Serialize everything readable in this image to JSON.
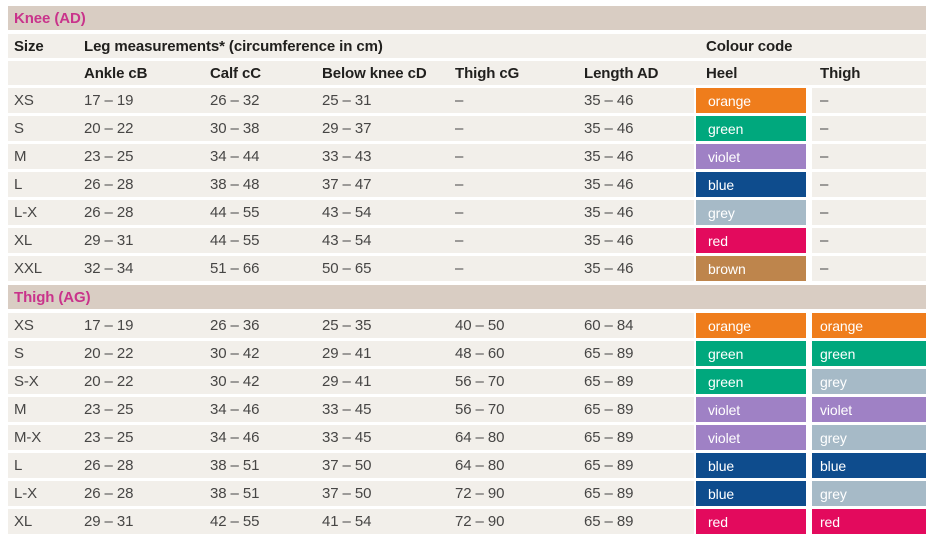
{
  "colors": {
    "band_bg": "#D9CDC3",
    "row_bg": "#F2EFEA",
    "section_title": "#C9338B",
    "header_text": "#21201E",
    "data_text": "#474645",
    "swatch_text": "#FFFFFF",
    "swatches": {
      "orange": "#EF7D1C",
      "green": "#00A87D",
      "violet": "#9F81C5",
      "blue": "#0E4C8D",
      "grey": "#A6BAC7",
      "red": "#E30A5D",
      "brown": "#BE854C"
    }
  },
  "table": {
    "size_label": "Size",
    "leg_measurements_label": "Leg measurements* (circumference in cm)",
    "colour_code_label": "Colour code",
    "measure_columns": [
      "Ankle cB",
      "Calf cC",
      "Below knee cD",
      "Thigh cG",
      "Length AD"
    ],
    "colour_columns": [
      "Heel",
      "Thigh"
    ],
    "sections": [
      {
        "id": "knee",
        "title": "Knee (AD)",
        "rows": [
          {
            "size": "XS",
            "values": [
              "17 – 19",
              "26 – 32",
              "25 – 31",
              "–",
              "35 – 46"
            ],
            "heel": "orange",
            "thigh": "–"
          },
          {
            "size": "S",
            "values": [
              "20 – 22",
              "30 – 38",
              "29 – 37",
              "–",
              "35 – 46"
            ],
            "heel": "green",
            "thigh": "–"
          },
          {
            "size": "M",
            "values": [
              "23 – 25",
              "34 – 44",
              "33 – 43",
              "–",
              "35 – 46"
            ],
            "heel": "violet",
            "thigh": "–"
          },
          {
            "size": "L",
            "values": [
              "26 – 28",
              "38 – 48",
              "37 – 47",
              "–",
              "35 – 46"
            ],
            "heel": "blue",
            "thigh": "–"
          },
          {
            "size": "L-X",
            "values": [
              "26 – 28",
              "44 – 55",
              "43 – 54",
              "–",
              "35 – 46"
            ],
            "heel": "grey",
            "thigh": "–"
          },
          {
            "size": "XL",
            "values": [
              "29 – 31",
              "44 – 55",
              "43 – 54",
              "–",
              "35 – 46"
            ],
            "heel": "red",
            "thigh": "–"
          },
          {
            "size": "XXL",
            "values": [
              "32 – 34",
              "51 – 66",
              "50 – 65",
              "–",
              "35 – 46"
            ],
            "heel": "brown",
            "thigh": "–"
          }
        ]
      },
      {
        "id": "thigh",
        "title": "Thigh (AG)",
        "rows": [
          {
            "size": "XS",
            "values": [
              "17 – 19",
              "26 – 36",
              "25 – 35",
              "40 – 50",
              "60 – 84"
            ],
            "heel": "orange",
            "thigh": "orange"
          },
          {
            "size": "S",
            "values": [
              "20 – 22",
              "30 – 42",
              "29 – 41",
              "48 – 60",
              "65 – 89"
            ],
            "heel": "green",
            "thigh": "green"
          },
          {
            "size": "S-X",
            "values": [
              "20 – 22",
              "30 – 42",
              "29 – 41",
              "56 – 70",
              "65 – 89"
            ],
            "heel": "green",
            "thigh": "grey"
          },
          {
            "size": "M",
            "values": [
              "23 – 25",
              "34 – 46",
              "33 – 45",
              "56 – 70",
              "65 – 89"
            ],
            "heel": "violet",
            "thigh": "violet"
          },
          {
            "size": "M-X",
            "values": [
              "23 – 25",
              "34 – 46",
              "33 – 45",
              "64 – 80",
              "65 – 89"
            ],
            "heel": "violet",
            "thigh": "grey"
          },
          {
            "size": "L",
            "values": [
              "26 – 28",
              "38 – 51",
              "37 – 50",
              "64 – 80",
              "65 – 89"
            ],
            "heel": "blue",
            "thigh": "blue"
          },
          {
            "size": "L-X",
            "values": [
              "26 – 28",
              "38 – 51",
              "37 – 50",
              "72 – 90",
              "65 – 89"
            ],
            "heel": "blue",
            "thigh": "grey"
          },
          {
            "size": "XL",
            "values": [
              "29 – 31",
              "42 – 55",
              "41 – 54",
              "72 – 90",
              "65 – 89"
            ],
            "heel": "red",
            "thigh": "red"
          }
        ]
      }
    ]
  }
}
